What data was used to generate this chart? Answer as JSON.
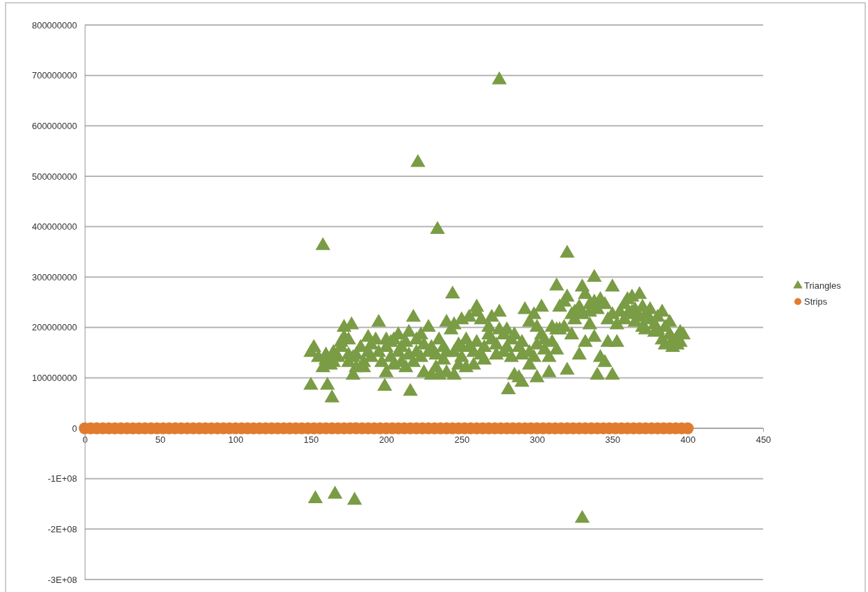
{
  "chart_data": {
    "type": "scatter",
    "xlim": [
      0,
      450
    ],
    "xticks": [
      0,
      50,
      100,
      150,
      200,
      250,
      300,
      350,
      400,
      450
    ],
    "ylim": [
      -300000000,
      800000000
    ],
    "yticks": [
      {
        "value": -300000000,
        "label": "-3E+08"
      },
      {
        "value": -200000000,
        "label": "-2E+08"
      },
      {
        "value": -100000000,
        "label": "-1E+08"
      },
      0,
      100000000,
      200000000,
      300000000,
      400000000,
      500000000,
      600000000,
      700000000,
      800000000
    ],
    "grid": "y",
    "legend": "right",
    "series": [
      {
        "name": "Triangles",
        "color": "#7a9c45",
        "marker": "triangle",
        "x": [
          158,
          221,
          275,
          234,
          244,
          320,
          338,
          313,
          153,
          166,
          179,
          330,
          150,
          161,
          164,
          199,
          216,
          281,
          290,
          150,
          152,
          155,
          158,
          160,
          160,
          163,
          165,
          165,
          168,
          170,
          170,
          172,
          172,
          175,
          175,
          175,
          177,
          178,
          178,
          180,
          180,
          183,
          185,
          185,
          188,
          188,
          190,
          190,
          193,
          195,
          195,
          197,
          200,
          200,
          200,
          203,
          203,
          205,
          205,
          208,
          208,
          210,
          210,
          213,
          213,
          215,
          215,
          218,
          218,
          220,
          220,
          223,
          223,
          225,
          225,
          228,
          228,
          230,
          230,
          233,
          233,
          235,
          235,
          238,
          238,
          240,
          240,
          240,
          243,
          245,
          245,
          245,
          248,
          248,
          250,
          250,
          250,
          253,
          253,
          255,
          255,
          258,
          258,
          260,
          260,
          260,
          263,
          263,
          265,
          265,
          268,
          268,
          270,
          270,
          273,
          273,
          275,
          275,
          278,
          278,
          280,
          280,
          283,
          283,
          285,
          285,
          288,
          288,
          290,
          290,
          292,
          295,
          295,
          295,
          298,
          298,
          300,
          300,
          300,
          303,
          303,
          305,
          305,
          308,
          308,
          310,
          310,
          313,
          313,
          315,
          315,
          318,
          318,
          320,
          320,
          323,
          323,
          325,
          325,
          328,
          328,
          330,
          330,
          332,
          332,
          335,
          335,
          335,
          338,
          338,
          340,
          340,
          342,
          342,
          345,
          345,
          347,
          347,
          350,
          350,
          350,
          353,
          353,
          355,
          358,
          358,
          360,
          360,
          363,
          363,
          365,
          365,
          368,
          368,
          370,
          370,
          372,
          372,
          375,
          375,
          378,
          378,
          380,
          380,
          383,
          383,
          385,
          385,
          388,
          388,
          390,
          390,
          393,
          393,
          395,
          395,
          397
        ],
        "values": [
          362000000,
          527000000,
          691000000,
          394000000,
          266000000,
          347000000,
          299000000,
          282000000,
          -140000000,
          -131000000,
          -143000000,
          -179000000,
          85000000,
          85000000,
          60000000,
          83000000,
          73000000,
          76000000,
          91000000,
          150000000,
          160000000,
          140000000,
          120000000,
          135000000,
          145000000,
          125000000,
          130000000,
          150000000,
          140000000,
          170000000,
          160000000,
          180000000,
          200000000,
          175000000,
          145000000,
          130000000,
          205000000,
          105000000,
          140000000,
          120000000,
          145000000,
          160000000,
          130000000,
          120000000,
          180000000,
          150000000,
          165000000,
          140000000,
          175000000,
          210000000,
          150000000,
          130000000,
          175000000,
          110000000,
          160000000,
          170000000,
          140000000,
          125000000,
          175000000,
          185000000,
          150000000,
          160000000,
          130000000,
          170000000,
          120000000,
          190000000,
          145000000,
          220000000,
          130000000,
          175000000,
          150000000,
          185000000,
          140000000,
          165000000,
          110000000,
          200000000,
          150000000,
          160000000,
          105000000,
          145000000,
          120000000,
          175000000,
          105000000,
          160000000,
          135000000,
          210000000,
          110000000,
          150000000,
          195000000,
          105000000,
          205000000,
          150000000,
          165000000,
          125000000,
          215000000,
          160000000,
          140000000,
          175000000,
          120000000,
          220000000,
          160000000,
          150000000,
          125000000,
          240000000,
          230000000,
          170000000,
          215000000,
          145000000,
          160000000,
          135000000,
          185000000,
          200000000,
          220000000,
          175000000,
          165000000,
          145000000,
          195000000,
          230000000,
          185000000,
          150000000,
          195000000,
          160000000,
          175000000,
          140000000,
          105000000,
          185000000,
          160000000,
          100000000,
          145000000,
          170000000,
          235000000,
          210000000,
          150000000,
          125000000,
          225000000,
          140000000,
          165000000,
          100000000,
          200000000,
          185000000,
          240000000,
          155000000,
          175000000,
          140000000,
          110000000,
          170000000,
          200000000,
          195000000,
          155000000,
          195000000,
          240000000,
          200000000,
          250000000,
          260000000,
          115000000,
          225000000,
          185000000,
          230000000,
          215000000,
          240000000,
          145000000,
          280000000,
          225000000,
          265000000,
          170000000,
          245000000,
          205000000,
          230000000,
          250000000,
          180000000,
          235000000,
          105000000,
          255000000,
          140000000,
          245000000,
          130000000,
          215000000,
          170000000,
          105000000,
          225000000,
          280000000,
          205000000,
          170000000,
          230000000,
          245000000,
          215000000,
          255000000,
          225000000,
          260000000,
          230000000,
          235000000,
          210000000,
          265000000,
          220000000,
          240000000,
          200000000,
          225000000,
          195000000,
          215000000,
          235000000,
          205000000,
          190000000,
          220000000,
          195000000,
          230000000,
          175000000,
          200000000,
          165000000,
          210000000,
          185000000,
          175000000,
          160000000,
          180000000,
          165000000,
          190000000,
          170000000,
          185000000
        ]
      },
      {
        "name": "Strips",
        "color": "#e07b2f",
        "marker": "circle",
        "x": [
          0,
          4,
          8,
          12,
          16,
          20,
          24,
          28,
          32,
          36,
          40,
          44,
          48,
          52,
          56,
          60,
          64,
          68,
          72,
          76,
          80,
          84,
          88,
          92,
          96,
          100,
          104,
          108,
          112,
          116,
          120,
          124,
          128,
          132,
          136,
          140,
          144,
          148,
          152,
          156,
          160,
          164,
          168,
          172,
          176,
          180,
          184,
          188,
          192,
          196,
          200,
          204,
          208,
          212,
          216,
          220,
          224,
          228,
          232,
          236,
          240,
          244,
          248,
          252,
          256,
          260,
          264,
          268,
          272,
          276,
          280,
          284,
          288,
          292,
          296,
          300,
          304,
          308,
          312,
          316,
          320,
          324,
          328,
          332,
          336,
          340,
          344,
          348,
          352,
          356,
          360,
          364,
          368,
          372,
          376,
          380,
          384,
          388,
          392,
          396,
          400
        ],
        "values": [
          0,
          0,
          0,
          0,
          0,
          0,
          0,
          0,
          0,
          0,
          0,
          0,
          0,
          0,
          0,
          0,
          0,
          0,
          0,
          0,
          0,
          0,
          0,
          0,
          0,
          0,
          0,
          0,
          0,
          0,
          0,
          0,
          0,
          0,
          0,
          0,
          0,
          0,
          0,
          0,
          0,
          0,
          0,
          0,
          0,
          0,
          0,
          0,
          0,
          0,
          0,
          0,
          0,
          0,
          0,
          0,
          0,
          0,
          0,
          0,
          0,
          0,
          0,
          0,
          0,
          0,
          0,
          0,
          0,
          0,
          0,
          0,
          0,
          0,
          0,
          0,
          0,
          0,
          0,
          0,
          0,
          0,
          0,
          0,
          0,
          0,
          0,
          0,
          0,
          0,
          0,
          0,
          0,
          0,
          0,
          0,
          0,
          0,
          0,
          0,
          0
        ]
      }
    ]
  }
}
